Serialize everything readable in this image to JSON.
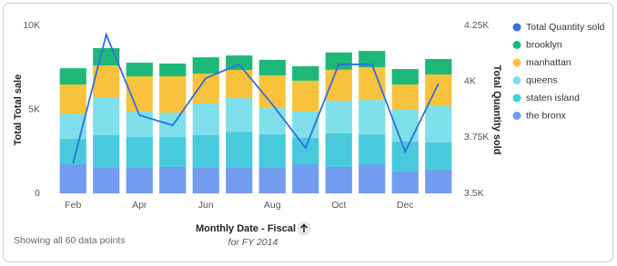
{
  "chart_data": {
    "type": "stacked-bar-line",
    "x_label": "Monthly Date - Fiscal",
    "x_sublabel": "for FY 2014",
    "y_label": "Total Total sale",
    "y2_label": "Total Quantity sold",
    "footer": "Showing all 60 data points",
    "categories": [
      "Feb",
      null,
      "Apr",
      null,
      "Jun",
      null,
      "Aug",
      null,
      "Oct",
      null,
      "Dec",
      null
    ],
    "ylim": [
      0,
      10000
    ],
    "yticks": [
      0,
      {
        "value": 5000,
        "label": "5K"
      },
      {
        "value": 10000,
        "label": "10K"
      }
    ],
    "y2lim": [
      3500,
      4250
    ],
    "y2ticks": [
      {
        "value": 3500,
        "label": "3.5K"
      },
      {
        "value": 3750,
        "label": "3.75K"
      },
      {
        "value": 4000,
        "label": "4K"
      },
      {
        "value": 4250,
        "label": "4.25K"
      }
    ],
    "legend": "right",
    "series": [
      {
        "name": "Total Quantity sold",
        "color": "#2f6fe0",
        "axis": "y2",
        "line": true,
        "values": [
          3634,
          4209,
          3849,
          3804,
          4015,
          4076,
          3897,
          3703,
          4076,
          4076,
          3686,
          3990
        ]
      },
      {
        "name": "brooklyn",
        "color": "#1db877",
        "values": [
          970,
          1030,
          810,
          760,
          970,
          860,
          920,
          860,
          1030,
          970,
          920,
          920
        ]
      },
      {
        "name": "manhattan",
        "color": "#f8c23c",
        "values": [
          1730,
          1890,
          2110,
          2160,
          1780,
          1680,
          1950,
          1840,
          1840,
          1950,
          1510,
          1890
        ]
      },
      {
        "name": "queens",
        "color": "#7fdfea",
        "values": [
          1510,
          2270,
          1510,
          1460,
          1890,
          2000,
          1570,
          1570,
          1950,
          2050,
          1890,
          2160
        ]
      },
      {
        "name": "staten island",
        "color": "#48cadc",
        "values": [
          1510,
          1950,
          1840,
          1780,
          1950,
          2160,
          2000,
          1570,
          2000,
          1780,
          1780,
          1620
        ]
      },
      {
        "name": "the bronx",
        "color": "#719cf0",
        "values": [
          1730,
          1510,
          1510,
          1570,
          1510,
          1510,
          1510,
          1730,
          1570,
          1730,
          1300,
          1410
        ]
      }
    ]
  }
}
